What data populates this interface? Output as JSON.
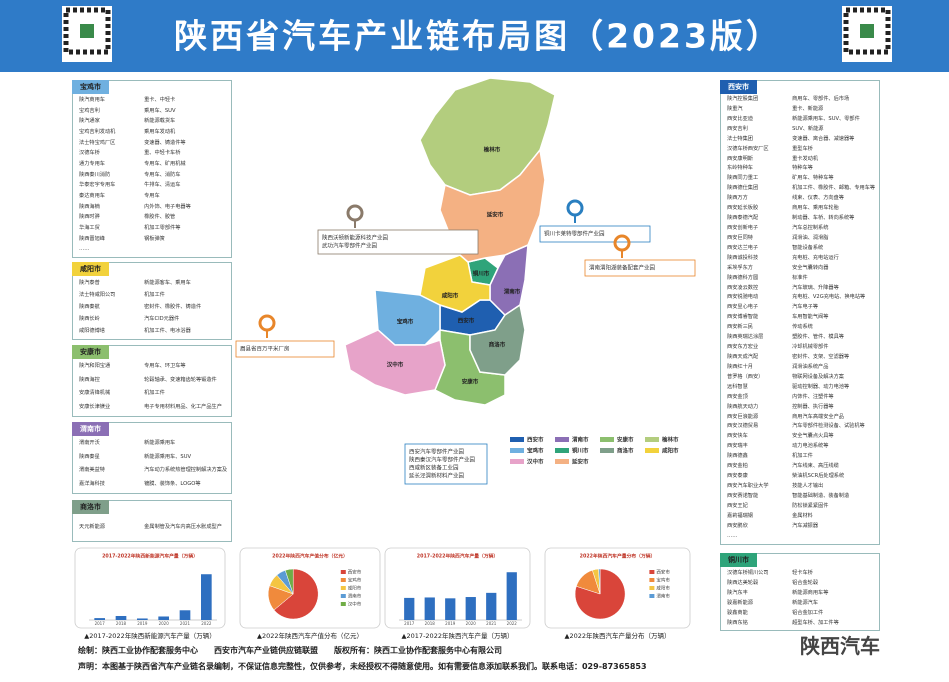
{
  "header": {
    "title": "陕西省汽车产业链布局图（2023版）"
  },
  "panels": [
    {
      "city": "宝鸡市",
      "color": "#6fb0e0",
      "rows": [
        [
          "陕汽商用车",
          "重卡、中轻卡"
        ],
        [
          "宝鸡吉利",
          "乘用车、SUV"
        ],
        [
          "陕汽通家",
          "新能源载货车"
        ],
        [
          "宝鸡吉利发动机",
          "乘用车发动机"
        ],
        [
          "法士特宝鸡厂区",
          "变速器、铸造件等"
        ],
        [
          "汉德车桥",
          "重、中轻卡车桥"
        ],
        [
          "通力专用车",
          "专用车、矿用机械"
        ],
        [
          "陕西秦川消防",
          "专用车、消防车"
        ],
        [
          "华泰宏宇专用车",
          "牛排车、清运车"
        ],
        [
          "秦达商用车",
          "专用车"
        ],
        [
          "陕西海楠",
          "内外饰、电子电器等"
        ],
        [
          "陕西时骅",
          "橡胶件、胶管"
        ],
        [
          "华海工贸",
          "机加工零部件等"
        ],
        [
          "陕西晋旭峰",
          "钢板弹簧"
        ],
        [
          "……"
        ]
      ]
    },
    {
      "city": "咸阳市",
      "color": "#f2d23c",
      "rows": [
        [
          "陕汽泰普",
          "新能源客车、乘用车"
        ],
        [
          "法士特咸阳公司",
          "机加工件"
        ],
        [
          "陕西秦航",
          "密封件、橡胶件、铸造件"
        ],
        [
          "陕西长岭",
          "汽车CID元器件"
        ],
        [
          "咸阳德博塔",
          "机加工件、电冰浴器"
        ]
      ]
    },
    {
      "city": "安康市",
      "color": "#8cbf6e",
      "rows": [
        [
          "陕汽和阳宝通",
          "专用车、环卫车等"
        ],
        [
          "陕西海控",
          "轮毂轴承、变速箱齿轮等锻造件"
        ],
        [
          "安康清锋机械",
          "机加工件"
        ],
        [
          "安康长津镁业",
          "电子专用材料用品、化工产品生产"
        ]
      ]
    },
    {
      "city": "渭南市",
      "color": "#8b6fb5",
      "rows": [
        [
          "渭南开沃",
          "新能源乘用车"
        ],
        [
          "陕西秦星",
          "新能源乘用车、SUV"
        ],
        [
          "渭南美益特",
          "汽车动力系统热管理控制解决方案及产品"
        ],
        [
          "嘉洋海科技",
          "镀膜、装饰条、LOGO等"
        ]
      ]
    },
    {
      "city": "商洛市",
      "color": "#7f9f8a",
      "rows": [
        [
          "天元新能源",
          "金属制管及汽车内高压水胀成型产"
        ]
      ]
    },
    {
      "city": "西安市",
      "color": "#1f5fb0",
      "rows": [
        [
          "陕汽控股集团",
          "商用车、零部件、后市场"
        ],
        [
          "陕重汽",
          "重卡、新能源"
        ],
        [
          "西安比亚迪",
          "新能源乘用车、SUV、零部件"
        ],
        [
          "西安吉利",
          "SUV、新能源"
        ],
        [
          "法士特集团",
          "变速器、离合器、减速器等"
        ],
        [
          "汉德车桥西安厂区",
          "重型车桥"
        ],
        [
          "西安康明斯",
          "重卡发动机"
        ],
        [
          "东岭特种车",
          "特种车等"
        ],
        [
          "陕西同力重工",
          "矿用车、特种车等"
        ],
        [
          "陕西德仕集团",
          "机加工件、橡胶件、邮箱、专用车等"
        ],
        [
          "陕西万方",
          "线束、仪表、方向盘等"
        ],
        [
          "西安延长板胶",
          "商用车、乘用车轮胎"
        ],
        [
          "陕西泰德汽配",
          "制动器、车桥、转向系统等"
        ],
        [
          "西安创新电子",
          "汽车总控制系统"
        ],
        [
          "西安巨同特",
          "润滑油、润滑脂"
        ],
        [
          "西安达兰电子",
          "智能设备系统"
        ],
        [
          "陕西诚投科技",
          "充电桩、充电站运行"
        ],
        [
          "采埃孚东方",
          "安全气囊转向器"
        ],
        [
          "陕西德科方圆",
          "标准件"
        ],
        [
          "西安凌云数控",
          "汽车玻璃、升降器等"
        ],
        [
          "西安锐驰电动",
          "充电桩、V2G充电站、换电站等"
        ],
        [
          "西安昱心电子",
          "汽车电子等"
        ],
        [
          "西安博睿智能",
          "车用智能气阀等"
        ],
        [
          "西安新三民",
          "传动系统"
        ],
        [
          "陕西英瑞达涂层",
          "塑胶件、管件、模具等"
        ],
        [
          "西安东方宏业",
          "冷却机械零部件"
        ],
        [
          "陕西天成汽配",
          "密封件、支架、空滤器等"
        ],
        [
          "陕西红十月",
          "润滑油系统产品"
        ],
        [
          "普罗格（西安）",
          "物联网设备及解决方案"
        ],
        [
          "远科智慧",
          "驱动控制器、动力电池等"
        ],
        [
          "西安金顶",
          "内饰件、注塑件等"
        ],
        [
          "陕西航天动力",
          "控制器、执行器等"
        ],
        [
          "西安巨浪能源",
          "商用汽车高端安全产品"
        ],
        [
          "西安汉德贸易",
          "汽车零部件检测设备、试验机等"
        ],
        [
          "西安快车",
          "安全气囊点火具等"
        ],
        [
          "西安瑞丰",
          "动力电池系统等"
        ],
        [
          "陕西德鑫",
          "机加工件"
        ],
        [
          "西安金柏",
          "汽车线束、高压线缆"
        ],
        [
          "西安泰康",
          "柴油机SCR后处理系统"
        ],
        [
          "西安汽车职业大学",
          "技能人才输出"
        ],
        [
          "西安赛诺智能",
          "智能基础制造、装备制造"
        ],
        [
          "西安王妃",
          "防松锁紧紧固件"
        ],
        [
          "嘉莉福瑞钢",
          "金属材料"
        ],
        [
          "西安鹏欣",
          "汽车减振器"
        ],
        [
          "……"
        ]
      ]
    },
    {
      "city": "铜川市",
      "color": "#2fa47a",
      "rows": [
        [
          "汉德车桥铜川公司",
          "轻卡车桥"
        ],
        [
          "陕西达美轮毂",
          "铝合金轮毂"
        ],
        [
          "陕汽东丰",
          "新能源商用车等"
        ],
        [
          "骏嘉新能源",
          "新能源汽车"
        ],
        [
          "骏鑫商能",
          "铝合金加工件"
        ],
        [
          "陕西东铭",
          "超型车桥、加工件等"
        ]
      ]
    }
  ],
  "map": {
    "regions": [
      {
        "name": "西安市",
        "color": "#1f5fb0"
      },
      {
        "name": "渭南市",
        "color": "#8b6fb5"
      },
      {
        "name": "安康市",
        "color": "#8cbf6e"
      },
      {
        "name": "榆林市",
        "color": "#b3cd7e"
      },
      {
        "name": "宝鸡市",
        "color": "#6fb0e0"
      },
      {
        "name": "铜川市",
        "color": "#2fa47a"
      },
      {
        "name": "商洛市",
        "color": "#7f9f8a"
      },
      {
        "name": "咸阳市",
        "color": "#f2d23c"
      },
      {
        "name": "汉中市",
        "color": "#e7a3c9"
      },
      {
        "name": "延安市",
        "color": "#f4b183"
      }
    ],
    "callouts": [
      {
        "lines": [
          "陕西沃顿新能源科技产业园",
          "武功汽车零部件产业园"
        ],
        "color": "#8a7a6a"
      },
      {
        "lines": [
          "铜川卡莱特零部件产业园"
        ],
        "color": "#2a7fc0"
      },
      {
        "lines": [
          "渭南渭阳湖装备配套产业园"
        ],
        "color": "#e8862a"
      },
      {
        "lines": [
          "眉县省百万平米厂房"
        ],
        "color": "#e8862a"
      },
      {
        "lines": [
          "西安汽车零部件产业园",
          "陕西秦汉汽车零部件产业园",
          "西咸新区装备工业园",
          "延长泾渭新材料产业园"
        ],
        "color": "#2a7fc0"
      }
    ]
  },
  "charts": [
    {
      "type": "bar",
      "title": "2017-2022年陕西新能源汽车产量（万辆）",
      "caption": "▲2017-2022年陕西新能源汽车产量（万辆）",
      "categories": [
        "2017",
        "2018",
        "2019",
        "2020",
        "2021",
        "2022"
      ],
      "values": [
        4.2,
        8.9,
        3.4,
        7.8,
        21.6,
        101.7
      ],
      "color": "#2e6fc0",
      "ylim": [
        0,
        120
      ]
    },
    {
      "type": "pie",
      "title": "2022年陕西汽车产值分布（亿元）",
      "caption": "▲2022年陕西汽车产值分布（亿元）",
      "categories": [
        "西安市",
        "宝鸡市",
        "咸阳市",
        "渭南市",
        "汉中市"
      ],
      "values": [
        62,
        16,
        8,
        6,
        5
      ],
      "colors": [
        "#d9453a",
        "#f08a3c",
        "#f4c542",
        "#5b9bd5",
        "#70ad47"
      ]
    },
    {
      "type": "bar",
      "title": "2017-2022年陕西汽车产量（万辆）",
      "caption": "▲2017-2022年陕西汽车产量（万辆）",
      "categories": [
        "2017",
        "2018",
        "2019",
        "2020",
        "2021",
        "2022"
      ],
      "values": [
        61.4,
        62.6,
        60.2,
        63.8,
        75.4,
        132.7
      ],
      "color": "#2e6fc0",
      "ylim": [
        0,
        150
      ]
    },
    {
      "type": "pie",
      "title": "2022年陕西汽车产量分布（万辆）",
      "caption": "▲2022年陕西汽车产量分布（万辆）",
      "categories": [
        "西安市",
        "宝鸡市",
        "咸阳市",
        "渭南市"
      ],
      "values": [
        80,
        15,
        4,
        1
      ],
      "colors": [
        "#d9453a",
        "#f08a3c",
        "#f4c542",
        "#5b9bd5"
      ]
    }
  ],
  "footer": {
    "credit": "绘制：陕西工业协作配套服务中心　　西安市汽车产业链供应链联盟　　版权所有：陕西工业协作配套服务中心有限公司",
    "disclaimer": "声明：本图基于陕西省汽车产业链名录编制，不保证信息完整性，仅供参考，未经授权不得随意使用。如有需要信息添加联系我们。联系电话：029-87365853"
  },
  "watermark": "陕西汽车"
}
